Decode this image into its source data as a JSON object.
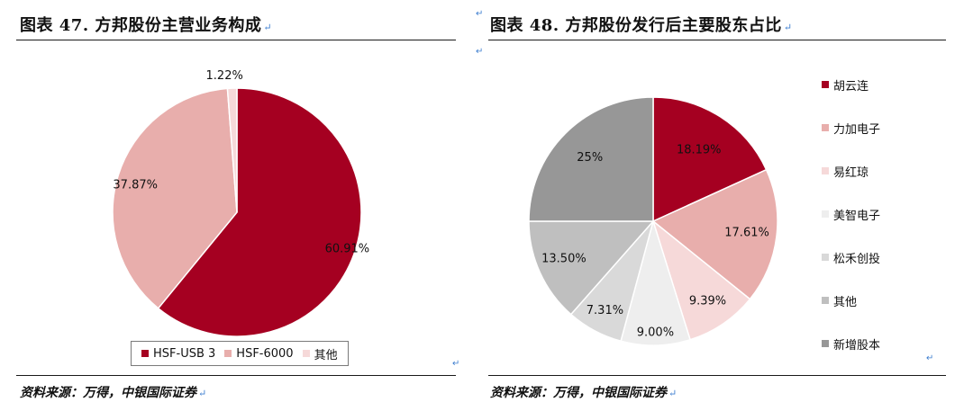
{
  "chart_data": [
    {
      "type": "pie",
      "title": "图表 47. 方邦股份主营业务构成",
      "source": "资料来源：万得，中银国际证券",
      "categories": [
        "HSF-USB 3",
        "HSF-6000",
        "其他"
      ],
      "values": [
        60.91,
        37.87,
        1.22
      ],
      "value_labels": [
        "60.91%",
        "37.87%",
        "1.22%"
      ],
      "colors": [
        "#a50021",
        "#e8aeac",
        "#f6d9d9"
      ],
      "legend_position": "bottom"
    },
    {
      "type": "pie",
      "title": "图表 48. 方邦股份发行后主要股东占比",
      "source": "资料来源：万得，中银国际证券",
      "categories": [
        "胡云连",
        "力加电子",
        "易红琼",
        "美智电子",
        "松禾创投",
        "其他",
        "新增股本"
      ],
      "values": [
        18.19,
        17.61,
        9.39,
        9.0,
        7.31,
        13.5,
        25
      ],
      "value_labels": [
        "18.19%",
        "17.61%",
        "9.39%",
        "9.00%",
        "7.31%",
        "13.50%",
        "25%"
      ],
      "colors": [
        "#a50021",
        "#e8aeac",
        "#f6d9d9",
        "#eeeeee",
        "#d9d9d9",
        "#bfbfbf",
        "#979797"
      ],
      "legend_position": "right"
    }
  ],
  "markers": {
    "return_mark": "↵"
  }
}
